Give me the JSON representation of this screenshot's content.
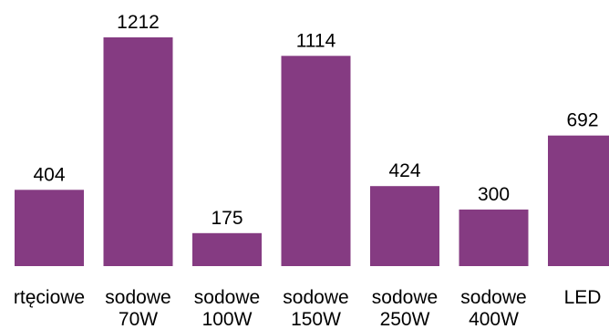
{
  "chart_data": {
    "type": "bar",
    "categories": [
      [
        "rtęciowe"
      ],
      [
        "sodowe",
        "70W"
      ],
      [
        "sodowe",
        "100W"
      ],
      [
        "sodowe",
        "150W"
      ],
      [
        "sodowe",
        "250W"
      ],
      [
        "sodowe",
        "400W"
      ],
      [
        "LED"
      ]
    ],
    "values": [
      404,
      1212,
      175,
      1114,
      424,
      300,
      692
    ],
    "value_labels": [
      "404",
      "1212",
      "175",
      "1114",
      "424",
      "300",
      "692"
    ],
    "colors": {
      "bar": "#853B82"
    },
    "title": "",
    "xlabel": "",
    "ylabel": "",
    "ylim": [
      0,
      1212
    ],
    "grid": false,
    "legend": "none"
  }
}
